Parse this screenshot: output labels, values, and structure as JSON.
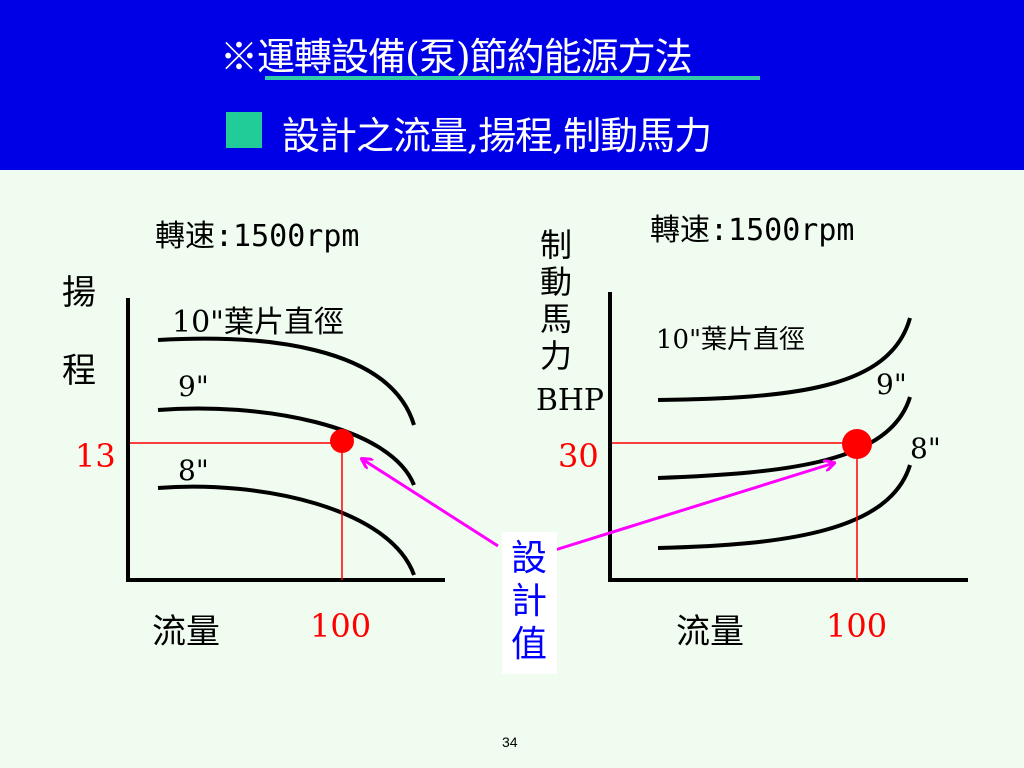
{
  "header": {
    "title": "※運轉設備(泵)節約能源方法",
    "subtitle": "設計之流量,揚程,制動馬力",
    "background_color": "#0000e6",
    "accent_color": "#22cc99"
  },
  "left_chart": {
    "speed_label": "轉速:1500rpm",
    "y_label_chars": [
      "揚",
      "程"
    ],
    "curve_labels": [
      "10\"葉片直徑",
      "9\"",
      "8\""
    ],
    "design_y_value": "13",
    "design_x_value": "100",
    "x_label": "流量"
  },
  "right_chart": {
    "speed_label": "轉速:1500rpm",
    "y_label_chars": [
      "制",
      "動",
      "馬",
      "力"
    ],
    "y_label_unit": "BHP",
    "curve_labels": [
      "10\"葉片直徑",
      "9\"",
      "8\""
    ],
    "design_y_value": "30",
    "design_x_value": "100",
    "x_label": "流量"
  },
  "design_callout": {
    "chars": [
      "設",
      "計",
      "值"
    ],
    "color": "#0000ff",
    "arrow_color": "#ff00ff",
    "marker_color": "#ff0000"
  },
  "footer": {
    "page_number": "34"
  }
}
